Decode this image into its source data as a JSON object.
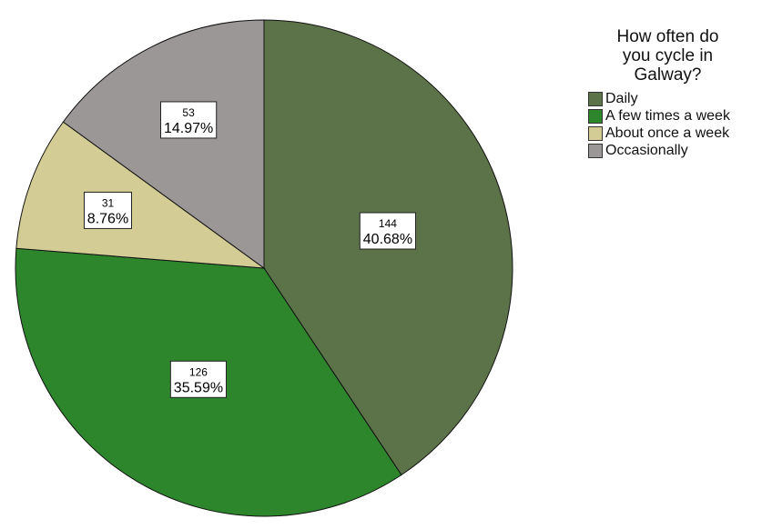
{
  "chart_data": {
    "type": "pie",
    "title_lines": [
      "How often do",
      "you cycle in",
      "Galway?"
    ],
    "legend_position": "top-right",
    "slices": [
      {
        "label": "Daily",
        "count": "144",
        "percent_label": "40.68%",
        "value": 144,
        "color": "#5c7249"
      },
      {
        "label": "A few times a week",
        "count": "126",
        "percent_label": "35.59%",
        "value": 126,
        "color": "#2e862c"
      },
      {
        "label": "About once a week",
        "count": "31",
        "percent_label": "8.76%",
        "value": 31,
        "color": "#d3cc94"
      },
      {
        "label": "Occasionally",
        "count": "53",
        "percent_label": "14.97%",
        "value": 53,
        "color": "#9a9796"
      }
    ]
  }
}
